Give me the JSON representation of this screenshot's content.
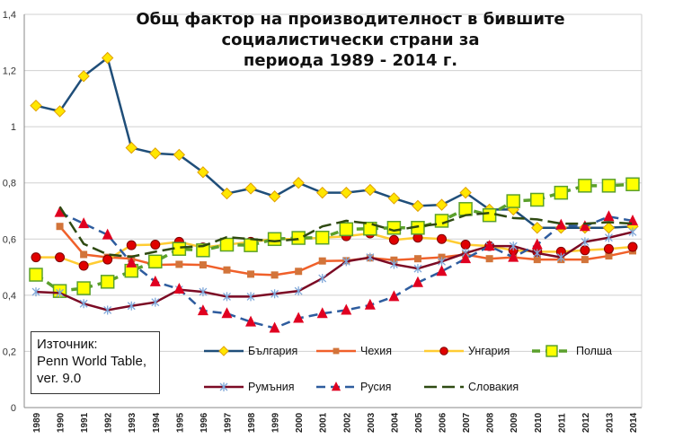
{
  "chart_data": {
    "type": "line",
    "title": "Общ фактор на производителност в бившите социалистически страни за периода 1989 - 2014 г.",
    "title_lines": [
      "Общ фактор на производителност в бившите социалистически страни за",
      "периода 1989 - 2014 г."
    ],
    "annotation_lines": [
      "Източник:",
      "Penn World Table,",
      "ver. 9.0"
    ],
    "x": [
      1989,
      1990,
      1991,
      1992,
      1993,
      1994,
      1995,
      1996,
      1997,
      1998,
      1999,
      2000,
      2001,
      2002,
      2003,
      2004,
      2005,
      2006,
      2007,
      2008,
      2009,
      2010,
      2011,
      2012,
      2013,
      2014
    ],
    "ylim": [
      0,
      1.4
    ],
    "yticks": [
      "0",
      "0,2",
      "0,4",
      "0,6",
      "0,8",
      "1",
      "1,2",
      "1,4"
    ],
    "grid": true,
    "legend_position": "bottom-inside",
    "series": [
      {
        "name": "България",
        "color": "#1F4E79",
        "marker": "diamond",
        "marker_fill": "#FFE600",
        "marker_stroke": "#E0A000",
        "dash": "solid",
        "values": [
          1.075,
          1.055,
          1.18,
          1.245,
          0.925,
          0.905,
          0.9,
          0.838,
          0.762,
          0.78,
          0.752,
          0.8,
          0.765,
          0.765,
          0.775,
          0.745,
          0.718,
          0.722,
          0.765,
          0.705,
          0.705,
          0.64,
          0.64,
          0.64,
          0.64,
          0.645
        ]
      },
      {
        "name": "Чехия",
        "color": "#F0602A",
        "marker": "square-small",
        "marker_fill": "#D2743A",
        "marker_stroke": "#D2743A",
        "dash": "solid",
        "values": [
          null,
          0.645,
          0.545,
          0.535,
          0.53,
          0.508,
          0.51,
          0.508,
          0.49,
          0.475,
          0.472,
          0.485,
          0.522,
          0.523,
          0.533,
          0.525,
          0.53,
          0.535,
          0.545,
          0.53,
          0.535,
          0.527,
          0.527,
          0.527,
          0.54,
          0.558
        ]
      },
      {
        "name": "Унгария",
        "color": "#FFCC33",
        "marker": "circle",
        "marker_fill": "#E00000",
        "marker_stroke": "#800000",
        "dash": "solid",
        "values": [
          0.535,
          0.535,
          0.505,
          0.527,
          0.578,
          0.58,
          0.59,
          0.57,
          0.58,
          0.59,
          0.6,
          0.6,
          0.605,
          0.61,
          0.62,
          0.597,
          0.605,
          0.6,
          0.58,
          0.575,
          0.56,
          0.555,
          0.555,
          0.56,
          0.565,
          0.572
        ]
      },
      {
        "name": "Полша",
        "color": "#5AA02C",
        "marker": "square",
        "marker_fill": "#FFFF00",
        "marker_stroke": "#5AA02C",
        "dash": "dashed-thick",
        "values": [
          0.473,
          0.415,
          0.425,
          0.448,
          0.487,
          0.52,
          0.565,
          0.56,
          0.58,
          0.578,
          0.6,
          0.604,
          0.605,
          0.635,
          0.637,
          0.64,
          0.64,
          0.665,
          0.707,
          0.685,
          0.735,
          0.74,
          0.765,
          0.79,
          0.79,
          0.795
        ]
      },
      {
        "name": "Румъния",
        "color": "#7B0A24",
        "marker": "star",
        "marker_fill": "#7FA7D9",
        "marker_stroke": "#7FA7D9",
        "dash": "solid",
        "values": [
          0.412,
          0.408,
          0.37,
          0.347,
          0.362,
          0.375,
          0.42,
          0.412,
          0.395,
          0.395,
          0.405,
          0.415,
          0.46,
          0.52,
          0.535,
          0.51,
          0.495,
          0.52,
          0.55,
          0.575,
          0.575,
          0.55,
          0.535,
          0.59,
          0.605,
          0.625
        ]
      },
      {
        "name": "Русия",
        "color": "#2E5C9E",
        "marker": "triangle",
        "marker_fill": "#E00020",
        "marker_stroke": "#E00020",
        "dash": "dashed",
        "values": [
          null,
          0.695,
          0.655,
          0.615,
          0.515,
          0.448,
          0.422,
          0.345,
          0.335,
          0.305,
          0.283,
          0.318,
          0.335,
          0.347,
          0.365,
          0.395,
          0.445,
          0.485,
          0.53,
          0.575,
          0.535,
          0.58,
          0.65,
          0.645,
          0.68,
          0.665
        ]
      },
      {
        "name": "Словакия",
        "color": "#2F4A12",
        "marker": "none",
        "dash": "longdash",
        "values": [
          null,
          0.715,
          0.583,
          0.545,
          0.537,
          0.555,
          0.57,
          0.575,
          0.607,
          0.6,
          0.592,
          0.6,
          0.645,
          0.665,
          0.655,
          0.63,
          0.645,
          0.655,
          0.685,
          0.693,
          0.675,
          0.67,
          0.655,
          0.655,
          0.66,
          0.655
        ]
      }
    ]
  }
}
